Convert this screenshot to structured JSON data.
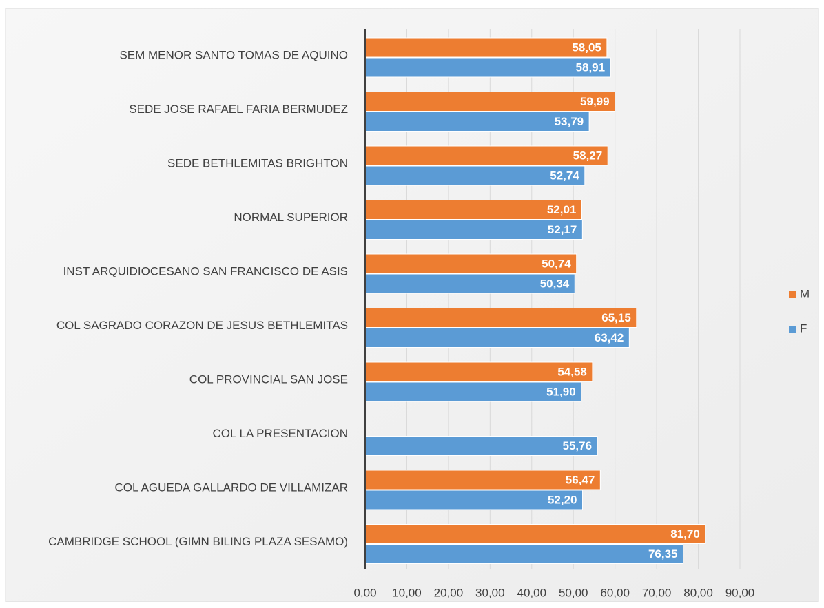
{
  "chart_data": {
    "type": "hbar",
    "categories": [
      "SEM MENOR SANTO TOMAS DE AQUINO",
      "SEDE JOSE RAFAEL FARIA BERMUDEZ",
      "SEDE BETHLEMITAS BRIGHTON",
      "NORMAL SUPERIOR",
      "INST ARQUIDIOCESANO SAN FRANCISCO DE ASIS",
      "COL SAGRADO CORAZON DE JESUS BETHLEMITAS",
      "COL PROVINCIAL SAN JOSE",
      "COL LA PRESENTACION",
      "COL AGUEDA GALLARDO DE VILLAMIZAR",
      "CAMBRIDGE SCHOOL (GIMN BILING PLAZA SESAMO)"
    ],
    "series": [
      {
        "name": "M",
        "color": "#ed7d31",
        "values": [
          58.05,
          59.99,
          58.27,
          52.01,
          50.74,
          65.15,
          54.58,
          null,
          56.47,
          81.7
        ],
        "value_labels": [
          "58,05",
          "59,99",
          "58,27",
          "52,01",
          "50,74",
          "65,15",
          "54,58",
          null,
          "56,47",
          "81,70"
        ]
      },
      {
        "name": "F",
        "color": "#5b9bd5",
        "values": [
          58.91,
          53.79,
          52.74,
          52.17,
          50.34,
          63.42,
          51.9,
          55.76,
          52.2,
          76.35
        ],
        "value_labels": [
          "58,91",
          "53,79",
          "52,74",
          "52,17",
          "50,34",
          "63,42",
          "51,90",
          "55,76",
          "52,20",
          "76,35"
        ]
      }
    ],
    "xlim": [
      0,
      90
    ],
    "xticks": [
      {
        "value": 0,
        "label": "0,00"
      },
      {
        "value": 10,
        "label": "10,00"
      },
      {
        "value": 20,
        "label": "20,00"
      },
      {
        "value": 30,
        "label": "30,00"
      },
      {
        "value": 40,
        "label": "40,00"
      },
      {
        "value": 50,
        "label": "50,00"
      },
      {
        "value": 60,
        "label": "60,00"
      },
      {
        "value": 70,
        "label": "70,00"
      },
      {
        "value": 80,
        "label": "80,00"
      },
      {
        "value": 90,
        "label": "90,00"
      }
    ],
    "grid": true,
    "legend": "right"
  }
}
